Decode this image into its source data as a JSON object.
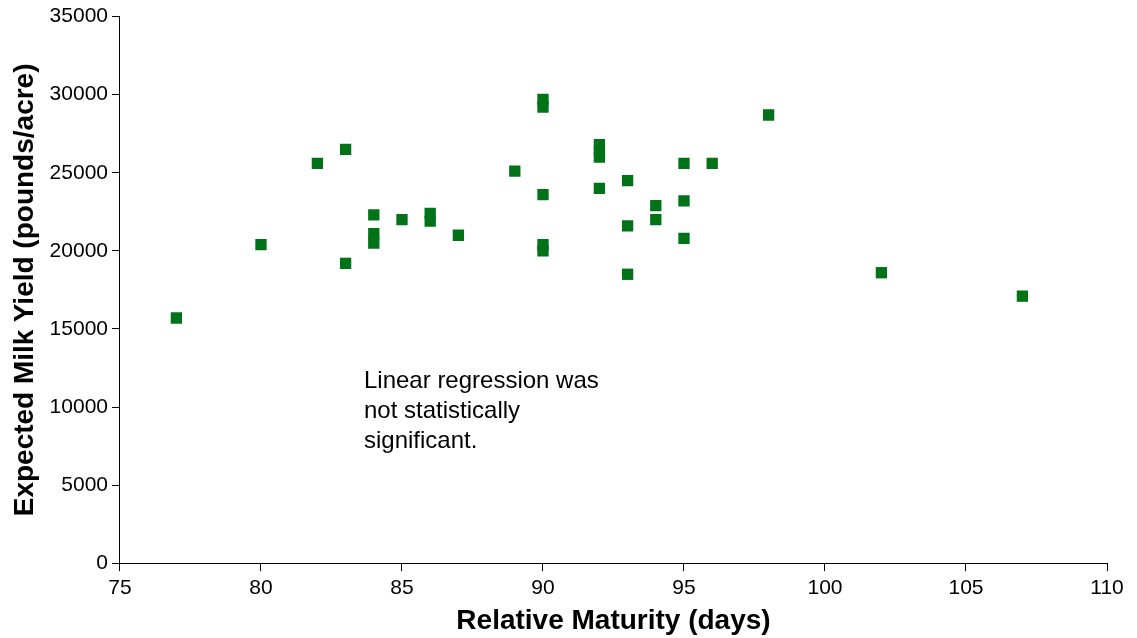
{
  "chart_data": {
    "type": "scatter",
    "xlabel": "Relative Maturity (days)",
    "ylabel": "Expected Milk Yield (pounds/acre)",
    "x": [
      77,
      80,
      82,
      83,
      83,
      84,
      84,
      84,
      85,
      86,
      86,
      87,
      89,
      90,
      90,
      90,
      90,
      90,
      92,
      92,
      92,
      92,
      93,
      93,
      93,
      94,
      94,
      95,
      95,
      95,
      96,
      98,
      102,
      107
    ],
    "series": [
      {
        "color": "#007318",
        "values": [
          15700,
          20400,
          25600,
          26500,
          19200,
          22300,
          21100,
          20500,
          22000,
          22400,
          21900,
          21000,
          25100,
          29700,
          29200,
          23600,
          20400,
          20000,
          26800,
          26400,
          26000,
          24000,
          24500,
          21600,
          18500,
          22900,
          22000,
          25600,
          23200,
          20800,
          25600,
          28700,
          18600,
          17100
        ]
      }
    ],
    "xlim": [
      75,
      110
    ],
    "xticks": [
      75,
      80,
      85,
      90,
      95,
      100,
      105,
      110
    ],
    "ylim": [
      0,
      35000
    ],
    "yticks": [
      0,
      5000,
      10000,
      15000,
      20000,
      25000,
      30000,
      35000
    ],
    "grid": false,
    "legend": false,
    "marker": "square",
    "annotations": [
      "Linear regression was not statistically significant."
    ]
  }
}
